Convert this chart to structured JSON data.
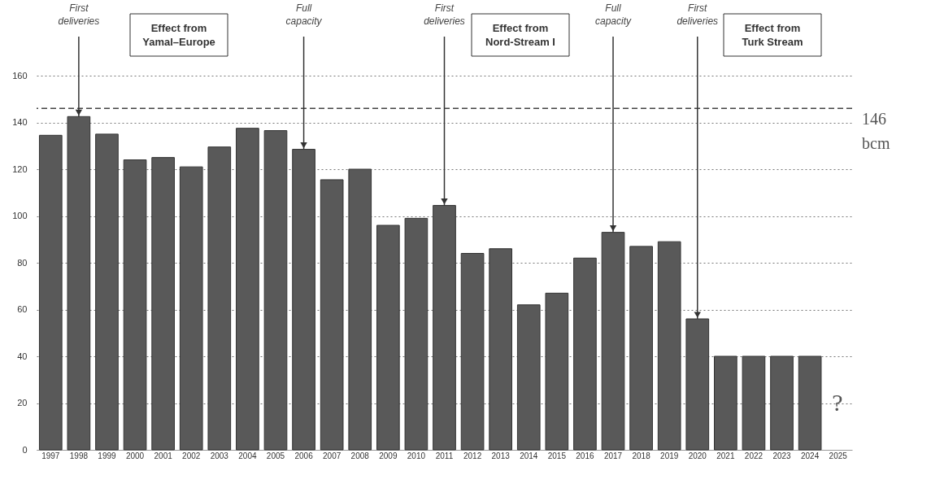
{
  "chart_data": {
    "type": "bar",
    "categories": [
      "1997",
      "1998",
      "1999",
      "2000",
      "2001",
      "2002",
      "2003",
      "2004",
      "2005",
      "2006",
      "2007",
      "2008",
      "2009",
      "2010",
      "2011",
      "2012",
      "2013",
      "2014",
      "2015",
      "2016",
      "2017",
      "2018",
      "2019",
      "2020",
      "2021",
      "2022",
      "2023",
      "2024",
      "2025"
    ],
    "values": [
      134.5,
      142.5,
      135,
      124,
      125,
      121,
      129.5,
      137.5,
      136.5,
      128.5,
      115.5,
      120,
      96,
      99,
      104.5,
      84,
      86,
      62,
      67,
      82,
      93,
      87,
      89,
      56,
      40,
      40,
      40,
      40,
      null
    ],
    "color": "#595959",
    "ylim": [
      0,
      160
    ],
    "yticks": [
      0,
      20,
      40,
      60,
      80,
      100,
      120,
      140,
      160
    ],
    "grid": "y",
    "ref_lines": [
      {
        "axis": "y",
        "value": 146,
        "label": "146 bcm",
        "line_style": "dashed"
      }
    ],
    "annotations": [
      {
        "text": "First deliveries",
        "x": "1998",
        "y": 142.5
      },
      {
        "text": "Full capacity",
        "x": "2006",
        "y": 128.5
      },
      {
        "text": "First deliveries",
        "x": "2011",
        "y": 104.5
      },
      {
        "text": "Full capacity",
        "x": "2017",
        "y": 93
      },
      {
        "text": "First deliveries",
        "x": "2020",
        "y": 56
      },
      "Effect from Yamal–Europe",
      "Effect from Nord-Stream I",
      "Effect from Turk Stream",
      "?"
    ]
  }
}
